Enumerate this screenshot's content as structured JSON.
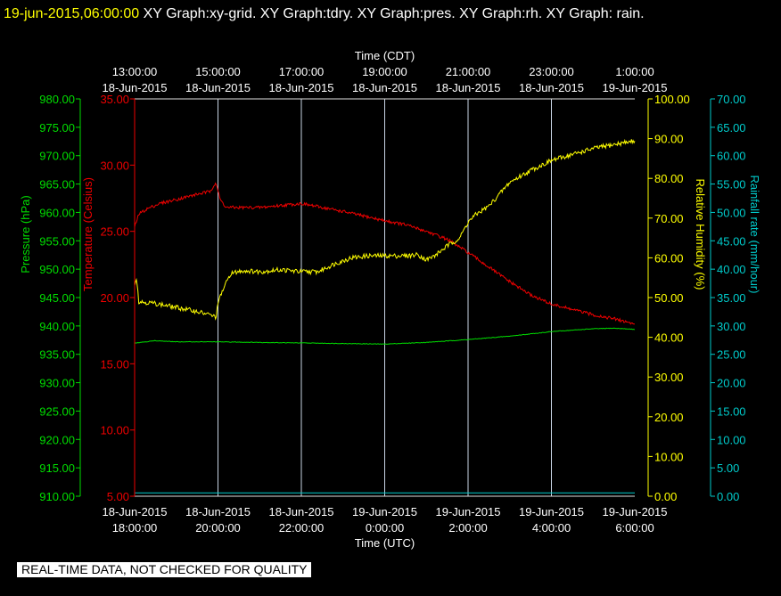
{
  "header": {
    "timestamp": "19-jun-2015,06:00:00",
    "title": "  XY Graph:xy-grid.  XY Graph:tdry.  XY Graph:pres.  XY Graph:rh.  XY Graph: rain."
  },
  "banner": "REAL-TIME DATA, NOT CHECKED FOR QUALITY",
  "colors": {
    "pressure": "#00dd00",
    "temperature": "#ee0000",
    "humidity": "#ffff00",
    "rain": "#00cccc",
    "grid": "#c8d4e4",
    "frame": "#e0e0e0"
  },
  "chart_data": {
    "type": "line",
    "x_top_label": "Time (CDT)",
    "x_bottom_label": "Time (UTC)",
    "x_range_hours": [
      0,
      12
    ],
    "top_ticks": [
      {
        "t": 0,
        "time": "13:00:00",
        "date": "18-Jun-2015"
      },
      {
        "t": 2,
        "time": "15:00:00",
        "date": "18-Jun-2015"
      },
      {
        "t": 4,
        "time": "17:00:00",
        "date": "18-Jun-2015"
      },
      {
        "t": 6,
        "time": "19:00:00",
        "date": "18-Jun-2015"
      },
      {
        "t": 8,
        "time": "21:00:00",
        "date": "18-Jun-2015"
      },
      {
        "t": 10,
        "time": "23:00:00",
        "date": "18-Jun-2015"
      },
      {
        "t": 12,
        "time": "1:00:00",
        "date": "19-Jun-2015"
      }
    ],
    "bottom_ticks": [
      {
        "t": 0,
        "date": "18-Jun-2015",
        "time": "18:00:00"
      },
      {
        "t": 2,
        "date": "18-Jun-2015",
        "time": "20:00:00"
      },
      {
        "t": 4,
        "date": "18-Jun-2015",
        "time": "22:00:00"
      },
      {
        "t": 6,
        "date": "19-Jun-2015",
        "time": "0:00:00"
      },
      {
        "t": 8,
        "date": "19-Jun-2015",
        "time": "2:00:00"
      },
      {
        "t": 10,
        "date": "19-Jun-2015",
        "time": "4:00:00"
      },
      {
        "t": 12,
        "date": "19-Jun-2015",
        "time": "6:00:00"
      }
    ],
    "axes": {
      "pressure": {
        "label": "Pressure (hPa)",
        "range": [
          910,
          980
        ],
        "ticks": [
          "910.00",
          "915.00",
          "920.00",
          "925.00",
          "930.00",
          "935.00",
          "940.00",
          "945.00",
          "950.00",
          "955.00",
          "960.00",
          "965.00",
          "970.00",
          "975.00",
          "980.00"
        ]
      },
      "temperature": {
        "label": "Temperature (Celsius)",
        "range": [
          5,
          35
        ],
        "ticks": [
          "5.00",
          "10.00",
          "15.00",
          "20.00",
          "25.00",
          "30.00",
          "35.00"
        ]
      },
      "humidity": {
        "label": "Relative Humidity (%)",
        "range": [
          0,
          100
        ],
        "ticks": [
          "0.00",
          "10.00",
          "20.00",
          "30.00",
          "40.00",
          "50.00",
          "60.00",
          "70.00",
          "80.00",
          "90.00",
          "100.00"
        ]
      },
      "rain": {
        "label": "Rainfall rate (mm/hour)",
        "range": [
          0,
          70
        ],
        "ticks": [
          "0.00",
          "5.00",
          "10.00",
          "15.00",
          "20.00",
          "25.00",
          "30.00",
          "35.00",
          "40.00",
          "45.00",
          "50.00",
          "55.00",
          "60.00",
          "65.00",
          "70.00"
        ]
      }
    },
    "series": [
      {
        "key": "temperature",
        "axis": "temperature",
        "noise": 0.12,
        "points": [
          [
            0,
            25.3
          ],
          [
            0.1,
            26.3
          ],
          [
            0.3,
            26.7
          ],
          [
            0.6,
            27.1
          ],
          [
            1.0,
            27.4
          ],
          [
            1.5,
            27.8
          ],
          [
            1.8,
            28.0
          ],
          [
            1.95,
            28.7
          ],
          [
            2.05,
            27.4
          ],
          [
            2.2,
            26.8
          ],
          [
            3.0,
            26.8
          ],
          [
            4.0,
            27.1
          ],
          [
            4.5,
            26.8
          ],
          [
            5.0,
            26.5
          ],
          [
            6.0,
            25.8
          ],
          [
            6.5,
            25.5
          ],
          [
            7.0,
            25.0
          ],
          [
            7.5,
            24.4
          ],
          [
            8.0,
            23.4
          ],
          [
            8.5,
            22.3
          ],
          [
            9.0,
            21.2
          ],
          [
            9.5,
            20.2
          ],
          [
            10.0,
            19.5
          ],
          [
            10.5,
            19.1
          ],
          [
            11.0,
            18.7
          ],
          [
            11.5,
            18.4
          ],
          [
            12.0,
            18.0
          ]
        ]
      },
      {
        "key": "humidity",
        "axis": "humidity",
        "noise": 0.6,
        "points": [
          [
            0,
            53.5
          ],
          [
            0.05,
            55.0
          ],
          [
            0.1,
            49.0
          ],
          [
            0.5,
            48.5
          ],
          [
            1.0,
            47.5
          ],
          [
            1.5,
            46.5
          ],
          [
            1.85,
            45.5
          ],
          [
            1.95,
            45.0
          ],
          [
            2.0,
            48.5
          ],
          [
            2.1,
            51.5
          ],
          [
            2.3,
            56.0
          ],
          [
            2.6,
            56.8
          ],
          [
            3.0,
            56.5
          ],
          [
            3.5,
            57.0
          ],
          [
            4.0,
            56.5
          ],
          [
            4.4,
            56.5
          ],
          [
            4.8,
            58.5
          ],
          [
            5.2,
            60.0
          ],
          [
            5.6,
            60.5
          ],
          [
            6.0,
            60.5
          ],
          [
            6.5,
            60.5
          ],
          [
            6.8,
            60.8
          ],
          [
            7.0,
            59.5
          ],
          [
            7.2,
            60.5
          ],
          [
            7.5,
            63.0
          ],
          [
            7.8,
            65.0
          ],
          [
            8.0,
            69.0
          ],
          [
            8.2,
            71.0
          ],
          [
            8.5,
            73.0
          ],
          [
            9.0,
            79.0
          ],
          [
            9.5,
            82.0
          ],
          [
            10.0,
            84.5
          ],
          [
            10.5,
            86.0
          ],
          [
            11.0,
            87.5
          ],
          [
            11.5,
            88.5
          ],
          [
            12.0,
            89.5
          ]
        ]
      },
      {
        "key": "pressure",
        "axis": "pressure",
        "noise": 0.05,
        "points": [
          [
            0,
            937.0
          ],
          [
            0.5,
            937.4
          ],
          [
            1.0,
            937.2
          ],
          [
            2.0,
            937.2
          ],
          [
            3.0,
            937.1
          ],
          [
            4.0,
            937.0
          ],
          [
            5.0,
            936.9
          ],
          [
            6.0,
            936.8
          ],
          [
            7.0,
            937.1
          ],
          [
            8.0,
            937.6
          ],
          [
            9.0,
            938.2
          ],
          [
            10.0,
            939.0
          ],
          [
            11.0,
            939.5
          ],
          [
            11.5,
            939.6
          ],
          [
            12.0,
            939.4
          ]
        ]
      },
      {
        "key": "rain",
        "axis": "rain",
        "noise": 0,
        "points": [
          [
            0,
            0.6
          ],
          [
            12.0,
            0.6
          ]
        ]
      }
    ]
  }
}
